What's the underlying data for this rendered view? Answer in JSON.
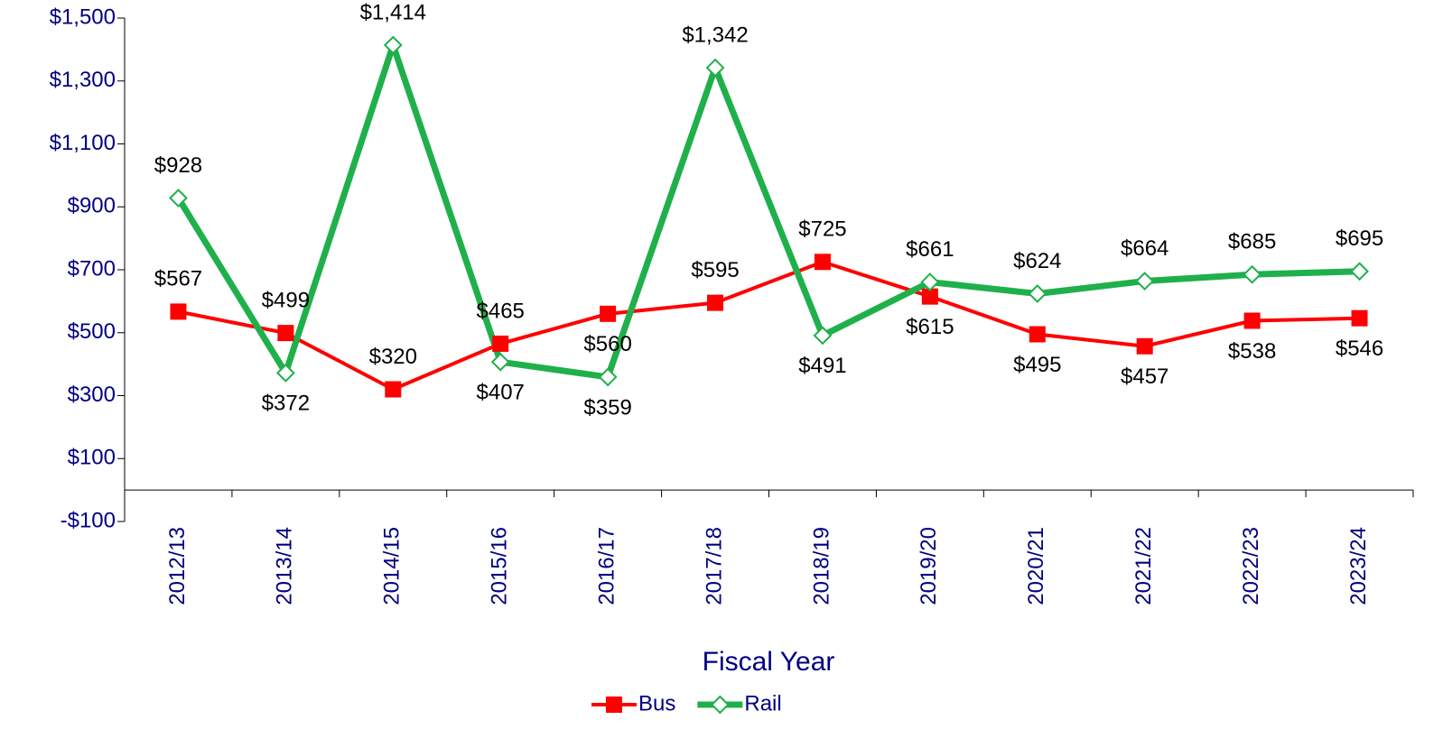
{
  "chart_data": {
    "type": "line",
    "x_label": "Fiscal Year",
    "categories": [
      "2012/13",
      "2013/14",
      "2014/15",
      "2015/16",
      "2016/17",
      "2017/18",
      "2018/19",
      "2019/20",
      "2020/21",
      "2021/22",
      "2022/23",
      "2023/24"
    ],
    "series": [
      {
        "name": "Bus",
        "color": "#ff0000",
        "marker": "square",
        "values": [
          567,
          499,
          320,
          465,
          560,
          595,
          725,
          615,
          495,
          457,
          538,
          546
        ],
        "value_labels": [
          "$567",
          "$499",
          "$320",
          "$465",
          "$560",
          "$595",
          "$725",
          "$615",
          "$495",
          "$457",
          "$538",
          "$546"
        ]
      },
      {
        "name": "Rail",
        "color": "#1fb04b",
        "marker": "diamond",
        "values": [
          928,
          372,
          1414,
          407,
          359,
          1342,
          491,
          661,
          624,
          664,
          685,
          695
        ],
        "value_labels": [
          "$928",
          "$372",
          "$1,414",
          "$407",
          "$359",
          "$1,342",
          "$491",
          "$661",
          "$624",
          "$664",
          "$685",
          "$695"
        ]
      }
    ],
    "ylim": [
      -100,
      1500
    ],
    "yticks": [
      {
        "value": -100,
        "label": "-$100"
      },
      {
        "value": 100,
        "label": "$100"
      },
      {
        "value": 300,
        "label": "$300"
      },
      {
        "value": 500,
        "label": "$500"
      },
      {
        "value": 700,
        "label": "$700"
      },
      {
        "value": 900,
        "label": "$900"
      },
      {
        "value": 1100,
        "label": "$1,100"
      },
      {
        "value": 1300,
        "label": "$1,300"
      },
      {
        "value": 1500,
        "label": "$1,500"
      }
    ],
    "legend": "bottom"
  }
}
